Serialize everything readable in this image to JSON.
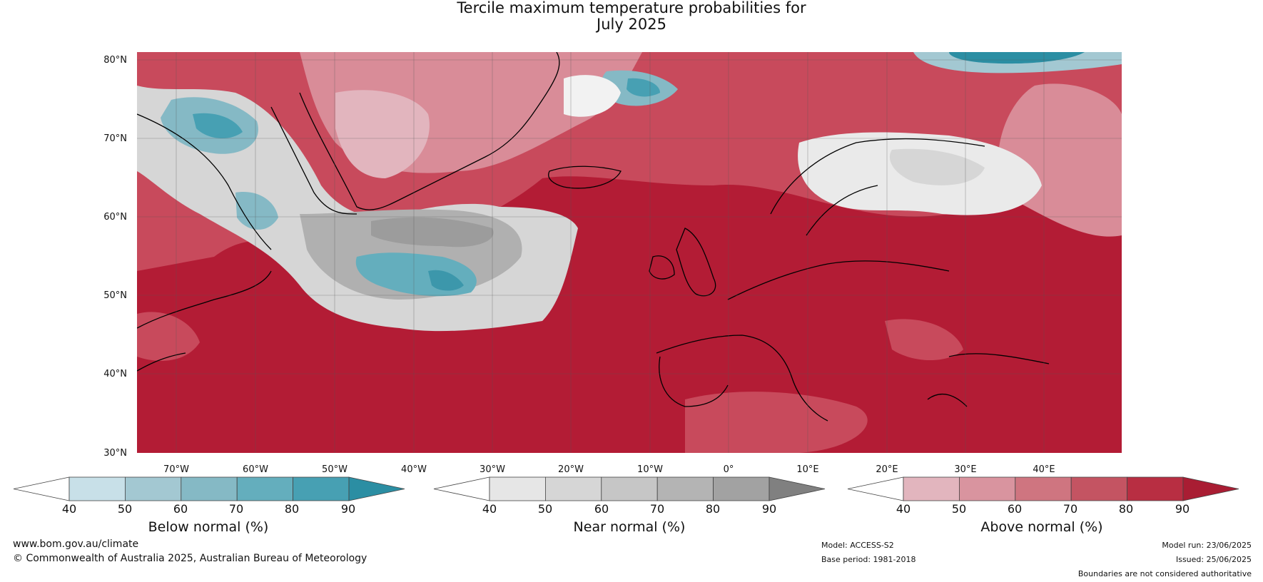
{
  "header": {
    "title_line1": "Tercile maximum temperature probabilities for",
    "title_line2": "July 2025"
  },
  "map": {
    "lat_labels": [
      "80°N",
      "70°N",
      "60°N",
      "50°N",
      "40°N",
      "30°N"
    ],
    "lon_labels": [
      "70°W",
      "60°W",
      "50°W",
      "40°W",
      "30°W",
      "20°W",
      "10°W",
      "0°",
      "10°E",
      "20°E",
      "30°E",
      "40°E"
    ]
  },
  "legends": [
    {
      "title": "Below normal (%)",
      "ticks": [
        "40",
        "50",
        "60",
        "70",
        "80",
        "90"
      ],
      "colors": [
        "#ffffff",
        "#c8e0e8",
        "#a3c8d2",
        "#85b9c5",
        "#64aebd",
        "#47a0b3",
        "#2b8ea3"
      ]
    },
    {
      "title": "Near normal (%)",
      "ticks": [
        "40",
        "50",
        "60",
        "70",
        "80",
        "90"
      ],
      "colors": [
        "#ffffff",
        "#e6e6e6",
        "#d6d6d6",
        "#c6c6c6",
        "#b4b4b4",
        "#a2a2a2",
        "#808080"
      ]
    },
    {
      "title": "Above normal (%)",
      "ticks": [
        "40",
        "50",
        "60",
        "70",
        "80",
        "90"
      ],
      "colors": [
        "#ffffff",
        "#e2b5be",
        "#d9949f",
        "#cf7580",
        "#c45462",
        "#b82e42",
        "#a91d33"
      ]
    }
  ],
  "footer": {
    "website": "www.bom.gov.au/climate",
    "copyright": "© Commonwealth of Australia 2025, Australian Bureau of Meteorology",
    "model": "Model: ACCESS-S2",
    "base_period": "Base period: 1981-2018",
    "model_run": "Model run: 23/06/2025",
    "issued": "Issued: 25/06/2025",
    "disclaimer": "Boundaries are not considered authoritative"
  }
}
